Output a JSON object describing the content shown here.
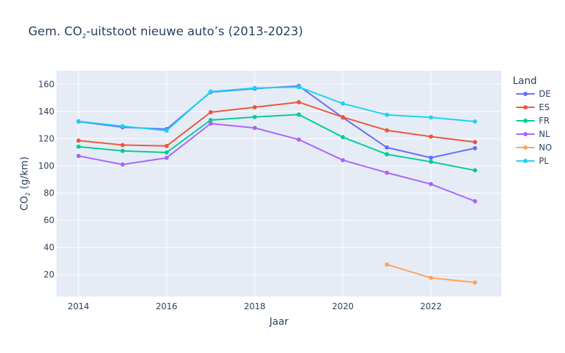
{
  "chart_data": {
    "type": "line",
    "title": {
      "prefix": "Gem. CO",
      "subscript": "2",
      "suffix": "-uitstoot nieuwe auto’s (2013-2023)"
    },
    "xlabel": "Jaar",
    "ylabel": {
      "prefix": "CO",
      "subscript": "2",
      "suffix": " (g/km)"
    },
    "xlim": [
      2013.5,
      2023.6
    ],
    "ylim": [
      4,
      170
    ],
    "x_ticks": [
      2014,
      2016,
      2018,
      2020,
      2022
    ],
    "x_tick_labels": [
      "2014",
      "2016",
      "2018",
      "2020",
      "2022"
    ],
    "y_ticks": [
      20,
      40,
      60,
      80,
      100,
      120,
      140,
      160
    ],
    "y_tick_labels": [
      "20",
      "40",
      "60",
      "80",
      "100",
      "120",
      "140",
      "160"
    ],
    "grid": true,
    "legend_title": "Land",
    "legend_position": "right",
    "series": [
      {
        "name": "DE",
        "color": "#636efa",
        "x": [
          2014,
          2015,
          2016,
          2017,
          2018,
          2019,
          2020,
          2021,
          2022,
          2023
        ],
        "y": [
          132.5,
          128.4,
          127.0,
          154.2,
          156.7,
          158.7,
          135.5,
          113.5,
          106.0,
          113.0
        ]
      },
      {
        "name": "ES",
        "color": "#ef553b",
        "x": [
          2014,
          2015,
          2016,
          2017,
          2018,
          2019,
          2020,
          2021,
          2022,
          2023
        ],
        "y": [
          118.6,
          115.3,
          114.6,
          139.4,
          143.1,
          146.8,
          135.8,
          126.1,
          121.5,
          117.5
        ]
      },
      {
        "name": "FR",
        "color": "#00cc96",
        "x": [
          2014,
          2015,
          2016,
          2017,
          2018,
          2019,
          2020,
          2021,
          2022,
          2023
        ],
        "y": [
          114.1,
          111.0,
          109.8,
          133.7,
          135.9,
          137.7,
          121.1,
          108.5,
          103.0,
          96.7
        ]
      },
      {
        "name": "NL",
        "color": "#ab63fa",
        "x": [
          2014,
          2015,
          2016,
          2017,
          2018,
          2019,
          2020,
          2021,
          2022,
          2023
        ],
        "y": [
          107.3,
          101.0,
          105.9,
          131.1,
          127.9,
          119.3,
          104.2,
          95.0,
          86.6,
          74.0
        ]
      },
      {
        "name": "NO",
        "color": "#ffa15a",
        "x": [
          2021,
          2022,
          2023
        ],
        "y": [
          27.5,
          17.7,
          14.3
        ]
      },
      {
        "name": "PL",
        "color": "#19d3f3",
        "x": [
          2014,
          2015,
          2016,
          2017,
          2018,
          2019,
          2020,
          2021,
          2022,
          2023
        ],
        "y": [
          132.8,
          129.2,
          125.9,
          154.6,
          157.2,
          157.9,
          145.8,
          137.5,
          135.6,
          132.6
        ]
      }
    ]
  }
}
